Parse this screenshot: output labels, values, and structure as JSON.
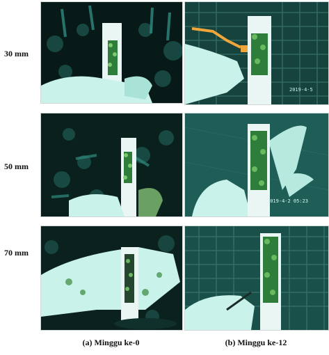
{
  "rows": [
    {
      "label": "30 mm"
    },
    {
      "label": "50 mm"
    },
    {
      "label": "70 mm"
    }
  ],
  "captions": {
    "col_a": "(a) Minggu ke-0",
    "col_b": "(b) Minggu ke-12"
  },
  "photo_timestamps": {
    "r1b": "2019-4-5",
    "r2b": "2019-4-2 05:23"
  },
  "colors": {
    "water_dark": "#071a17",
    "water_teal": "#1e5e57",
    "glove": "#c9f2ea",
    "pipe": "#e9f6f3",
    "coral": "#2f7d3a"
  }
}
